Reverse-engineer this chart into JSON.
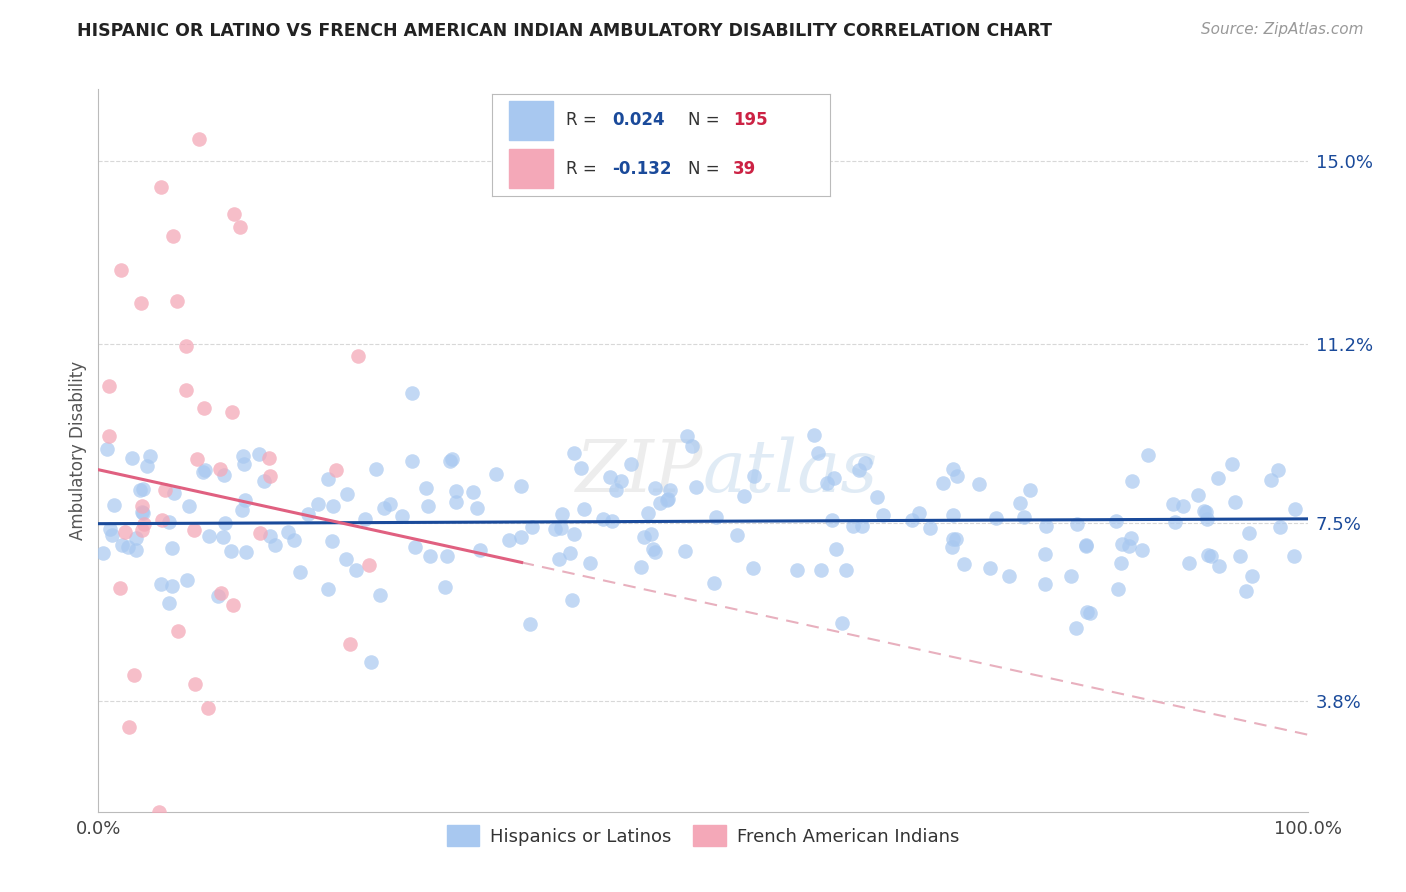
{
  "title": "HISPANIC OR LATINO VS FRENCH AMERICAN INDIAN AMBULATORY DISABILITY CORRELATION CHART",
  "source": "Source: ZipAtlas.com",
  "ylabel": "Ambulatory Disability",
  "xlim": [
    0,
    100
  ],
  "ylim": [
    1.5,
    16.5
  ],
  "yticks": [
    3.8,
    7.5,
    11.2,
    15.0
  ],
  "yticklabels": [
    "3.8%",
    "7.5%",
    "11.2%",
    "15.0%"
  ],
  "xticklabels": [
    "0.0%",
    "100.0%"
  ],
  "blue_R": 0.024,
  "blue_N": 195,
  "pink_R": -0.132,
  "pink_N": 39,
  "blue_color": "#a8c8f0",
  "pink_color": "#f4a8b8",
  "blue_line_color": "#1a4a9a",
  "pink_line_color": "#e06080",
  "pink_dash_color": "#e8b0be",
  "legend_R_color": "#1a4a9a",
  "legend_N_color": "#cc2244",
  "background_color": "#ffffff",
  "grid_color": "#d8d8d8",
  "blue_line_intercept": 7.48,
  "blue_line_slope": 0.001,
  "pink_line_intercept": 8.6,
  "pink_line_slope": -0.055,
  "pink_solid_end_x": 35
}
